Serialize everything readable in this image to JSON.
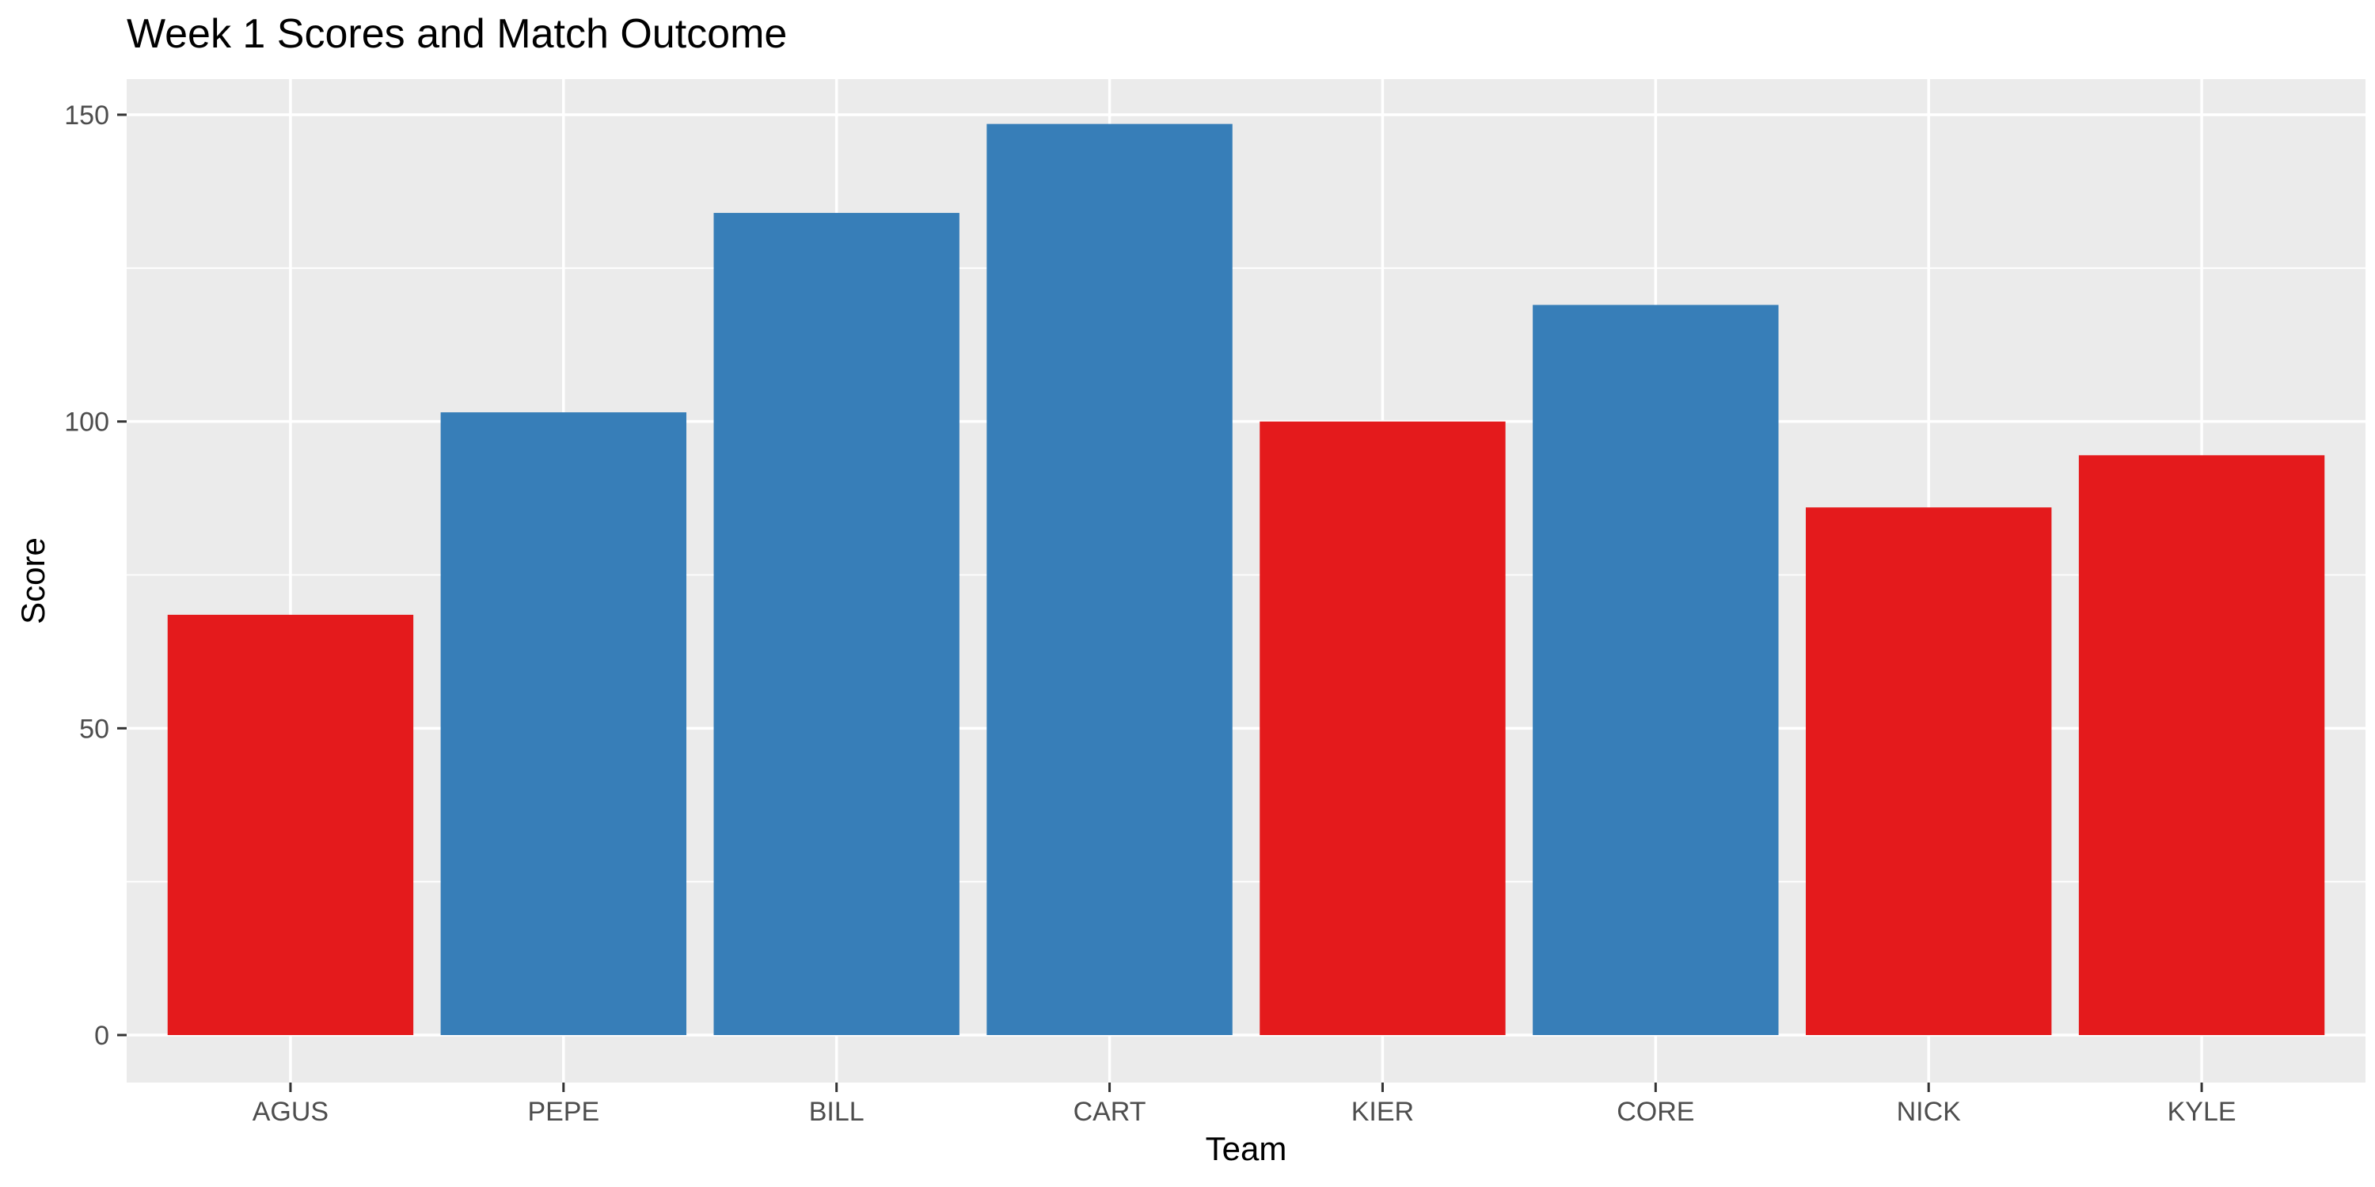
{
  "chart_data": {
    "type": "bar",
    "title": "Week 1 Scores and Match Outcome",
    "xlabel": "Team",
    "ylabel": "Score",
    "categories": [
      "AGUS",
      "PEPE",
      "BILL",
      "CART",
      "KIER",
      "CORE",
      "NICK",
      "KYLE"
    ],
    "values": [
      68.5,
      101.5,
      134,
      148.5,
      100,
      119,
      86,
      94.5
    ],
    "outcome_colors": [
      "#e41a1c",
      "#377eb8",
      "#377eb8",
      "#377eb8",
      "#e41a1c",
      "#377eb8",
      "#e41a1c",
      "#e41a1c"
    ],
    "ylim": [
      0,
      150
    ],
    "yticks": [
      0,
      50,
      100,
      150
    ],
    "grid": true,
    "legend": "none",
    "background_color": "#ebebeb"
  }
}
